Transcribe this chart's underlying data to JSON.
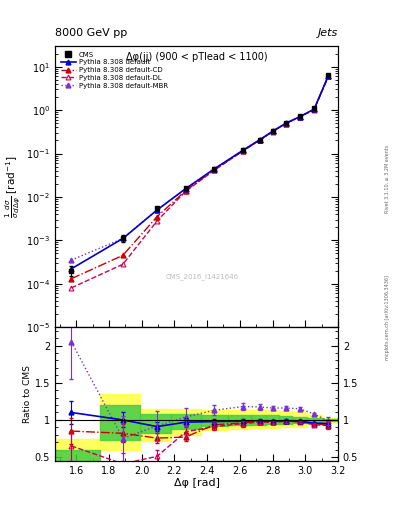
{
  "title_top": "8000 GeV pp",
  "title_right": "Jets",
  "plot_title": "Δφ(jj) (900 < pTlead < 1100)",
  "watermark": "CMS_2016_I1421646",
  "side_text": "mcplots.cern.ch [arXiv:1306.3436]",
  "rivet_text": "Rivet 3.1.10, ≥ 3.2M events",
  "xlabel": "Δφ [rad]",
  "ylabel_main": "$\\frac{1}{\\sigma}\\frac{d\\sigma}{d\\Delta\\varphi}$ [rad$^{-1}$]",
  "ylabel_ratio": "Ratio to CMS",
  "cms_x": [
    1.57,
    1.885,
    2.094,
    2.269,
    2.443,
    2.618,
    2.722,
    2.8,
    2.88,
    2.967,
    3.054,
    3.141
  ],
  "cms_y": [
    0.0002,
    0.0011,
    0.0055,
    0.016,
    0.045,
    0.12,
    0.21,
    0.33,
    0.5,
    0.72,
    1.1,
    6.5
  ],
  "cms_yerr": [
    5e-05,
    0.0002,
    0.0004,
    0.0008,
    0.002,
    0.005,
    0.008,
    0.012,
    0.018,
    0.025,
    0.04,
    0.3
  ],
  "py_default_x": [
    1.57,
    1.885,
    2.094,
    2.269,
    2.443,
    2.618,
    2.722,
    2.8,
    2.88,
    2.967,
    3.054,
    3.141
  ],
  "py_default_y": [
    0.00022,
    0.0011,
    0.005,
    0.0155,
    0.044,
    0.118,
    0.208,
    0.325,
    0.495,
    0.71,
    1.05,
    6.2
  ],
  "py_cd_x": [
    1.57,
    1.885,
    2.094,
    2.269,
    2.443,
    2.618,
    2.722,
    2.8,
    2.88,
    2.967,
    3.054,
    3.141
  ],
  "py_cd_y": [
    0.00013,
    0.00045,
    0.0035,
    0.014,
    0.042,
    0.115,
    0.205,
    0.322,
    0.492,
    0.705,
    1.04,
    6.1
  ],
  "py_dl_x": [
    1.57,
    1.885,
    2.094,
    2.269,
    2.443,
    2.618,
    2.722,
    2.8,
    2.88,
    2.967,
    3.054,
    3.141
  ],
  "py_dl_y": [
    8e-05,
    0.00028,
    0.0028,
    0.0135,
    0.041,
    0.114,
    0.204,
    0.32,
    0.49,
    0.7,
    1.03,
    6.0
  ],
  "py_mbr_x": [
    1.57,
    1.885,
    2.094,
    2.269,
    2.443,
    2.618,
    2.722,
    2.8,
    2.88,
    2.967,
    3.054,
    3.141
  ],
  "py_mbr_y": [
    0.00035,
    0.0011,
    0.005,
    0.0155,
    0.044,
    0.118,
    0.208,
    0.325,
    0.495,
    0.71,
    1.05,
    6.2
  ],
  "ratio_default": [
    1.1,
    1.0,
    0.91,
    0.97,
    0.978,
    0.983,
    0.99,
    0.985,
    0.99,
    0.986,
    0.955,
    0.954
  ],
  "ratio_cd": [
    0.85,
    0.82,
    0.755,
    0.77,
    0.935,
    0.96,
    0.976,
    0.976,
    0.984,
    0.979,
    0.945,
    0.938
  ],
  "ratio_dl": [
    0.65,
    0.41,
    0.51,
    0.84,
    0.91,
    0.95,
    0.971,
    0.97,
    0.98,
    0.972,
    0.936,
    0.923
  ],
  "ratio_mbr": [
    2.05,
    0.75,
    0.92,
    1.04,
    1.13,
    1.18,
    1.175,
    1.16,
    1.16,
    1.15,
    1.08,
    0.985
  ],
  "ratio_err_default": [
    0.15,
    0.1,
    0.06,
    0.05,
    0.04,
    0.03,
    0.025,
    0.02,
    0.018,
    0.015,
    0.012,
    0.04
  ],
  "ratio_err_cd": [
    0.18,
    0.12,
    0.07,
    0.06,
    0.045,
    0.035,
    0.028,
    0.022,
    0.02,
    0.016,
    0.013,
    0.045
  ],
  "ratio_err_dl": [
    0.2,
    0.15,
    0.09,
    0.07,
    0.05,
    0.04,
    0.03,
    0.025,
    0.022,
    0.018,
    0.014,
    0.05
  ],
  "ratio_err_mbr": [
    0.5,
    0.3,
    0.2,
    0.12,
    0.07,
    0.05,
    0.04,
    0.03,
    0.025,
    0.02,
    0.015,
    0.05
  ],
  "band_edges": [
    1.47,
    1.745,
    1.99,
    2.18,
    2.36,
    2.53,
    2.67,
    2.76,
    2.84,
    2.92,
    3.01,
    3.1,
    3.2
  ],
  "yellow_hi": [
    0.75,
    1.35,
    1.15,
    1.15,
    1.14,
    1.14,
    1.13,
    1.13,
    1.12,
    1.1,
    1.06,
    1.02
  ],
  "yellow_lo": [
    0.35,
    0.6,
    0.72,
    0.8,
    0.87,
    0.88,
    0.89,
    0.89,
    0.9,
    0.91,
    0.94,
    0.96
  ],
  "green_hi": [
    0.6,
    1.2,
    1.08,
    1.08,
    1.07,
    1.07,
    1.06,
    1.06,
    1.05,
    1.04,
    1.03,
    1.01
  ],
  "green_lo": [
    0.45,
    0.73,
    0.82,
    0.88,
    0.92,
    0.93,
    0.93,
    0.94,
    0.95,
    0.96,
    0.97,
    0.985
  ],
  "color_default": "#0000cc",
  "color_cd": "#cc0000",
  "color_dl": "#cc0055",
  "color_mbr": "#7733cc",
  "color_cms": "#000000",
  "ylim_main": [
    1e-05,
    30
  ],
  "ylim_ratio": [
    0.45,
    2.25
  ],
  "xlim": [
    1.47,
    3.2
  ],
  "yticks_ratio": [
    0.5,
    1.0,
    1.5,
    2.0
  ],
  "background_color": "#ffffff"
}
